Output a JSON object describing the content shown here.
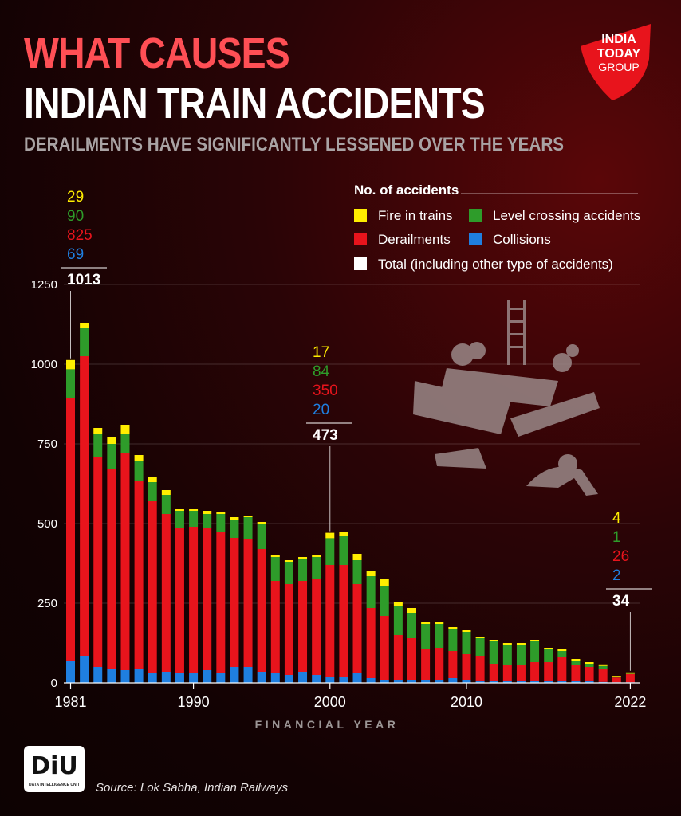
{
  "header": {
    "title_line1": "WHAT CAUSES",
    "title_line2": "INDIAN TRAIN ACCIDENTS",
    "subtitle": "DERAILMENTS HAVE SIGNIFICANTLY LESSENED OVER THE YEARS"
  },
  "logo": {
    "line1": "INDIA",
    "line2": "TODAY",
    "line3": "GROUP",
    "color": "#e8141c"
  },
  "footer": {
    "badge": "DiU",
    "badge_sub": "DATA INTELLIGENCE UNIT",
    "source": "Source: Lok Sabha, Indian Railways"
  },
  "colors": {
    "fire": "#ffee00",
    "level_crossing": "#2e9c2a",
    "derailments": "#e8141c",
    "collisions": "#1f7fe0",
    "total": "#ffffff"
  },
  "chart_data": {
    "type": "bar",
    "stacked": true,
    "xlabel": "FINANCIAL YEAR",
    "ylabel": "",
    "ylim": [
      0,
      1250
    ],
    "yticks": [
      0,
      250,
      500,
      750,
      1000,
      1250
    ],
    "x_tick_labels": [
      "1981",
      "1990",
      "2000",
      "2010",
      "2022"
    ],
    "legend_title": "No. of accidents",
    "legend_placement": "top-right",
    "grid": true,
    "x": [
      1981,
      1982,
      1983,
      1984,
      1985,
      1986,
      1987,
      1988,
      1989,
      1990,
      1991,
      1992,
      1993,
      1994,
      1995,
      1996,
      1997,
      1998,
      1999,
      2000,
      2001,
      2002,
      2003,
      2004,
      2005,
      2006,
      2007,
      2008,
      2009,
      2010,
      2011,
      2012,
      2013,
      2014,
      2015,
      2016,
      2017,
      2018,
      2019,
      2020,
      2021,
      2022
    ],
    "series": [
      {
        "name": "Collisions",
        "key": "collisions",
        "values": [
          69,
          85,
          50,
          45,
          40,
          45,
          30,
          35,
          30,
          30,
          40,
          30,
          50,
          50,
          35,
          30,
          25,
          35,
          25,
          20,
          20,
          30,
          15,
          10,
          10,
          10,
          10,
          10,
          15,
          10,
          5,
          5,
          5,
          5,
          5,
          5,
          5,
          5,
          5,
          3,
          2,
          2
        ]
      },
      {
        "name": "Derailments",
        "key": "derailments",
        "values": [
          825,
          940,
          660,
          625,
          680,
          590,
          540,
          495,
          455,
          460,
          445,
          445,
          405,
          400,
          385,
          290,
          285,
          285,
          300,
          350,
          350,
          280,
          220,
          200,
          140,
          130,
          95,
          100,
          85,
          80,
          80,
          55,
          50,
          50,
          60,
          60,
          75,
          50,
          45,
          40,
          15,
          26
        ]
      },
      {
        "name": "Level crossing accidents",
        "key": "level_crossing",
        "values": [
          90,
          90,
          70,
          80,
          60,
          60,
          60,
          60,
          55,
          50,
          45,
          55,
          55,
          70,
          80,
          75,
          70,
          70,
          70,
          84,
          90,
          75,
          100,
          95,
          90,
          80,
          80,
          75,
          70,
          70,
          55,
          70,
          65,
          65,
          65,
          40,
          20,
          15,
          10,
          10,
          3,
          1
        ]
      },
      {
        "name": "Fire in trains",
        "key": "fire",
        "values": [
          29,
          15,
          20,
          20,
          30,
          20,
          15,
          15,
          5,
          5,
          10,
          5,
          10,
          5,
          5,
          5,
          5,
          5,
          5,
          17,
          15,
          20,
          15,
          20,
          15,
          15,
          5,
          5,
          5,
          5,
          5,
          5,
          5,
          5,
          5,
          5,
          5,
          5,
          5,
          5,
          2,
          4
        ]
      }
    ],
    "total_legend": "Total (including other type of accidents)",
    "annotations": [
      {
        "year": 1981,
        "fire": "29",
        "level_crossing": "90",
        "derailments": "825",
        "collisions": "69",
        "total": "1013"
      },
      {
        "year": 2000,
        "fire": "17",
        "level_crossing": "84",
        "derailments": "350",
        "collisions": "20",
        "total": "473"
      },
      {
        "year": 2022,
        "fire": "4",
        "level_crossing": "1",
        "derailments": "26",
        "collisions": "2",
        "total": "34"
      }
    ]
  }
}
